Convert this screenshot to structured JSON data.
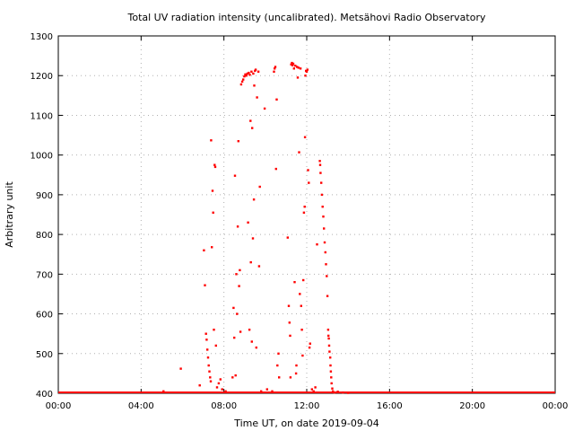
{
  "chart_data": {
    "type": "scatter",
    "title": "Total UV radiation intensity (uncalibrated). Metsähovi Radio Observatory",
    "xlabel": "Time UT, on date 2019-09-04",
    "ylabel": "Arbitrary unit",
    "xlim": [
      "00:00",
      "24:00"
    ],
    "ylim": [
      400,
      1300
    ],
    "x_tick_labels": [
      "00:00",
      "04:00",
      "08:00",
      "12:00",
      "16:00",
      "20:00",
      "00:00"
    ],
    "y_tick_labels": [
      "400",
      "500",
      "600",
      "700",
      "800",
      "900",
      "1000",
      "1100",
      "1200",
      "1300"
    ],
    "grid": true,
    "marker_color": "#ff0000",
    "baseline": {
      "value": 400,
      "from": "00:00",
      "to": "24:00"
    },
    "points": [
      [
        "05:05",
        405
      ],
      [
        "05:55",
        462
      ],
      [
        "06:50",
        420
      ],
      [
        "07:02",
        760
      ],
      [
        "07:05",
        672
      ],
      [
        "07:08",
        550
      ],
      [
        "07:10",
        535
      ],
      [
        "07:12",
        510
      ],
      [
        "07:14",
        490
      ],
      [
        "07:16",
        470
      ],
      [
        "07:18",
        455
      ],
      [
        "07:20",
        440
      ],
      [
        "07:22",
        430
      ],
      [
        "07:23",
        1037
      ],
      [
        "07:25",
        768
      ],
      [
        "07:27",
        910
      ],
      [
        "07:29",
        855
      ],
      [
        "07:31",
        560
      ],
      [
        "07:33",
        975
      ],
      [
        "07:35",
        970
      ],
      [
        "07:37",
        520
      ],
      [
        "07:40",
        415
      ],
      [
        "07:45",
        425
      ],
      [
        "07:50",
        435
      ],
      [
        "07:55",
        410
      ],
      [
        "08:05",
        405
      ],
      [
        "08:25",
        440
      ],
      [
        "08:28",
        615
      ],
      [
        "08:30",
        540
      ],
      [
        "08:32",
        948
      ],
      [
        "08:34",
        445
      ],
      [
        "08:36",
        700
      ],
      [
        "08:38",
        600
      ],
      [
        "08:40",
        820
      ],
      [
        "08:42",
        1035
      ],
      [
        "08:44",
        670
      ],
      [
        "08:46",
        710
      ],
      [
        "08:48",
        555
      ],
      [
        "08:50",
        1178
      ],
      [
        "08:53",
        1185
      ],
      [
        "08:56",
        1190
      ],
      [
        "08:59",
        1198
      ],
      [
        "09:02",
        1203
      ],
      [
        "09:05",
        1200
      ],
      [
        "09:08",
        1205
      ],
      [
        "09:10",
        830
      ],
      [
        "09:12",
        1207
      ],
      [
        "09:14",
        560
      ],
      [
        "09:15",
        1202
      ],
      [
        "09:17",
        1086
      ],
      [
        "09:18",
        730
      ],
      [
        "09:20",
        1210
      ],
      [
        "09:21",
        530
      ],
      [
        "09:22",
        1068
      ],
      [
        "09:24",
        790
      ],
      [
        "09:25",
        1205
      ],
      [
        "09:27",
        888
      ],
      [
        "09:28",
        1175
      ],
      [
        "09:30",
        1212
      ],
      [
        "09:32",
        1215
      ],
      [
        "09:34",
        515
      ],
      [
        "09:36",
        1145
      ],
      [
        "09:40",
        1210
      ],
      [
        "09:42",
        720
      ],
      [
        "09:44",
        920
      ],
      [
        "09:48",
        405
      ],
      [
        "09:58",
        1117
      ],
      [
        "10:05",
        410
      ],
      [
        "10:20",
        405
      ],
      [
        "10:25",
        1210
      ],
      [
        "10:27",
        1218
      ],
      [
        "10:29",
        1222
      ],
      [
        "10:31",
        965
      ],
      [
        "10:33",
        1140
      ],
      [
        "10:35",
        470
      ],
      [
        "10:38",
        500
      ],
      [
        "10:40",
        440
      ],
      [
        "11:05",
        792
      ],
      [
        "11:08",
        620
      ],
      [
        "11:10",
        578
      ],
      [
        "11:12",
        545
      ],
      [
        "11:13",
        440
      ],
      [
        "11:15",
        1228
      ],
      [
        "11:17",
        1232
      ],
      [
        "11:19",
        1226
      ],
      [
        "11:21",
        1230
      ],
      [
        "11:23",
        1218
      ],
      [
        "11:25",
        680
      ],
      [
        "11:27",
        1225
      ],
      [
        "11:29",
        450
      ],
      [
        "11:30",
        470
      ],
      [
        "11:32",
        1222
      ],
      [
        "11:34",
        1195
      ],
      [
        "11:36",
        1220
      ],
      [
        "11:38",
        1007
      ],
      [
        "11:40",
        650
      ],
      [
        "11:42",
        1218
      ],
      [
        "11:44",
        620
      ],
      [
        "11:46",
        560
      ],
      [
        "11:48",
        495
      ],
      [
        "11:50",
        685
      ],
      [
        "11:52",
        855
      ],
      [
        "11:54",
        870
      ],
      [
        "11:55",
        1045
      ],
      [
        "11:56",
        1200
      ],
      [
        "11:58",
        1212
      ],
      [
        "12:00",
        1210
      ],
      [
        "12:02",
        1215
      ],
      [
        "12:04",
        962
      ],
      [
        "12:06",
        930
      ],
      [
        "12:08",
        515
      ],
      [
        "12:10",
        525
      ],
      [
        "12:15",
        410
      ],
      [
        "12:20",
        405
      ],
      [
        "12:25",
        415
      ],
      [
        "12:30",
        775
      ],
      [
        "12:38",
        985
      ],
      [
        "12:39",
        975
      ],
      [
        "12:40",
        955
      ],
      [
        "12:42",
        930
      ],
      [
        "12:44",
        900
      ],
      [
        "12:46",
        870
      ],
      [
        "12:48",
        845
      ],
      [
        "12:50",
        815
      ],
      [
        "12:52",
        780
      ],
      [
        "12:54",
        755
      ],
      [
        "12:56",
        725
      ],
      [
        "12:58",
        695
      ],
      [
        "13:00",
        645
      ],
      [
        "13:02",
        560
      ],
      [
        "13:03",
        545
      ],
      [
        "13:04",
        538
      ],
      [
        "13:05",
        520
      ],
      [
        "13:06",
        505
      ],
      [
        "13:08",
        490
      ],
      [
        "13:09",
        470
      ],
      [
        "13:10",
        455
      ],
      [
        "13:11",
        440
      ],
      [
        "13:12",
        425
      ],
      [
        "13:14",
        412
      ],
      [
        "13:16",
        405
      ],
      [
        "13:20",
        402
      ],
      [
        "13:30",
        404
      ],
      [
        "13:45",
        402
      ],
      [
        "14:00",
        401
      ]
    ]
  }
}
